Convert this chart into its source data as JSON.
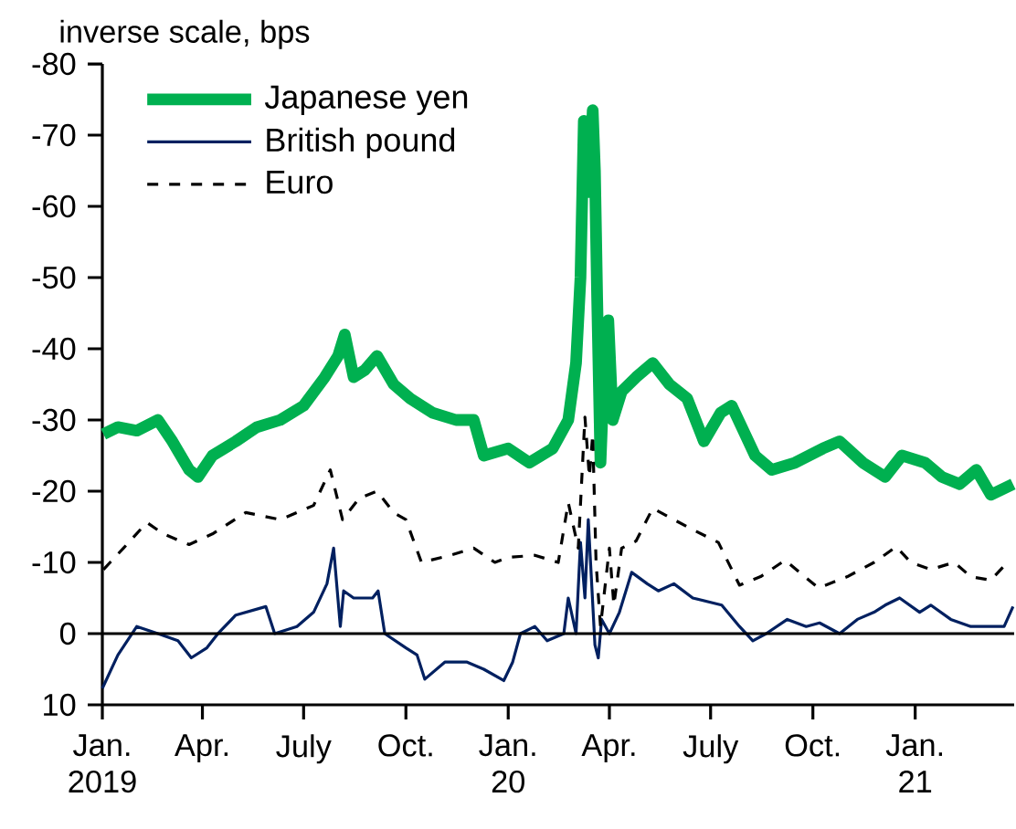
{
  "chart_data": {
    "type": "line",
    "ylabel": "inverse scale, bps",
    "xlim": [
      "2019-01-01",
      "2021-03-31"
    ],
    "ylim": [
      10,
      -80
    ],
    "yticks": [
      -80,
      -70,
      -60,
      -50,
      -40,
      -30,
      -20,
      -10,
      0,
      10
    ],
    "xticks": [
      {
        "value": "2019-01-01",
        "label": "Jan. 2019"
      },
      {
        "value": "2019-04-01",
        "label": "Apr."
      },
      {
        "value": "2019-07-01",
        "label": "July"
      },
      {
        "value": "2019-10-01",
        "label": "Oct."
      },
      {
        "value": "2020-01-01",
        "label": "Jan. 20"
      },
      {
        "value": "2020-04-01",
        "label": "Apr."
      },
      {
        "value": "2020-07-01",
        "label": "July"
      },
      {
        "value": "2020-10-01",
        "label": "Oct."
      },
      {
        "value": "2021-01-01",
        "label": "Jan. 21"
      }
    ],
    "legend": "top left",
    "grid": false,
    "marker": "none",
    "ref_lines": [
      {
        "axis": "y",
        "value": 0,
        "color": "#000000"
      }
    ],
    "series": [
      {
        "name": "Japanese yen",
        "color": "#00b050",
        "line_style": "solid",
        "x": [
          "2019-01-02",
          "2019-01-15",
          "2019-02-01",
          "2019-02-20",
          "2019-03-05",
          "2019-03-20",
          "2019-03-28",
          "2019-04-10",
          "2019-05-01",
          "2019-05-20",
          "2019-06-10",
          "2019-07-01",
          "2019-07-20",
          "2019-08-01",
          "2019-08-07",
          "2019-08-15",
          "2019-08-25",
          "2019-09-05",
          "2019-09-20",
          "2019-10-05",
          "2019-10-25",
          "2019-11-15",
          "2019-12-01",
          "2019-12-10",
          "2020-01-01",
          "2020-01-20",
          "2020-02-10",
          "2020-02-24",
          "2020-03-02",
          "2020-03-06",
          "2020-03-09",
          "2020-03-12",
          "2020-03-14",
          "2020-03-17",
          "2020-03-19",
          "2020-03-21",
          "2020-03-24",
          "2020-03-28",
          "2020-03-31",
          "2020-04-04",
          "2020-04-12",
          "2020-04-25",
          "2020-05-10",
          "2020-05-25",
          "2020-06-10",
          "2020-06-25",
          "2020-07-10",
          "2020-07-20",
          "2020-08-10",
          "2020-08-25",
          "2020-09-15",
          "2020-10-10",
          "2020-10-25",
          "2020-11-15",
          "2020-12-05",
          "2020-12-20",
          "2021-01-10",
          "2021-01-25",
          "2021-02-10",
          "2021-02-25",
          "2021-03-10",
          "2021-03-30"
        ],
        "values": [
          -28,
          -29,
          -28.5,
          -30,
          -27,
          -23,
          -22,
          -25,
          -27,
          -29,
          -30,
          -32,
          -36,
          -39,
          -42,
          -36,
          -37,
          -39,
          -35,
          -33,
          -31,
          -30,
          -30,
          -25,
          -26,
          -24,
          -26,
          -30,
          -38,
          -50,
          -72,
          -71,
          -62,
          -73.5,
          -65,
          -47,
          -24,
          -40,
          -44,
          -30,
          -34,
          -36,
          -38,
          -35,
          -33,
          -27,
          -31,
          -32,
          -25,
          -23,
          -24,
          -26,
          -27,
          -24,
          -22,
          -25,
          -24,
          -22,
          -21,
          -23,
          -19.5,
          -21
        ]
      },
      {
        "name": "British pound",
        "color": "#002060",
        "line_style": "solid",
        "x": [
          "2019-01-01",
          "2019-01-15",
          "2019-02-01",
          "2019-02-20",
          "2019-03-10",
          "2019-03-22",
          "2019-04-05",
          "2019-04-15",
          "2019-05-01",
          "2019-05-28",
          "2019-06-05",
          "2019-06-25",
          "2019-07-10",
          "2019-07-22",
          "2019-07-28",
          "2019-08-03",
          "2019-08-06",
          "2019-08-15",
          "2019-09-01",
          "2019-09-06",
          "2019-09-12",
          "2019-10-01",
          "2019-10-11",
          "2019-10-18",
          "2019-11-05",
          "2019-11-25",
          "2019-12-10",
          "2019-12-28",
          "2020-01-05",
          "2020-01-12",
          "2020-01-25",
          "2020-02-05",
          "2020-02-20",
          "2020-02-24",
          "2020-03-02",
          "2020-03-06",
          "2020-03-10",
          "2020-03-13",
          "2020-03-19",
          "2020-03-22",
          "2020-03-25",
          "2020-04-01",
          "2020-04-10",
          "2020-04-21",
          "2020-05-05",
          "2020-05-15",
          "2020-05-29",
          "2020-06-15",
          "2020-07-11",
          "2020-07-27",
          "2020-08-08",
          "2020-08-20",
          "2020-09-08",
          "2020-09-25",
          "2020-10-07",
          "2020-10-25",
          "2020-11-10",
          "2020-11-25",
          "2020-12-05",
          "2020-12-18",
          "2021-01-05",
          "2021-01-15",
          "2021-02-02",
          "2021-02-20",
          "2021-03-10",
          "2021-03-22",
          "2021-03-30"
        ],
        "values": [
          7.7,
          3,
          -1,
          0,
          1,
          3.4,
          2,
          0,
          -2.6,
          -3.8,
          0,
          -1,
          -3,
          -7,
          -12,
          -1,
          -6,
          -5,
          -5,
          -6,
          0,
          2,
          3,
          6.4,
          4,
          4,
          5,
          6.6,
          4,
          0,
          -1,
          1,
          0,
          -5,
          0,
          -12.8,
          -5,
          -16,
          1.6,
          3.4,
          -2,
          0,
          -3,
          -8.6,
          -7,
          -6,
          -7,
          -5,
          -4,
          -1,
          1,
          0,
          -2,
          -1,
          -1.5,
          0,
          -2,
          -3,
          -4,
          -5,
          -3,
          -4,
          -2,
          -1,
          -1,
          -1,
          -3.8
        ]
      },
      {
        "name": "Euro",
        "color": "#000000",
        "line_style": "dashed",
        "x": [
          "2019-01-02",
          "2019-01-20",
          "2019-02-10",
          "2019-02-25",
          "2019-03-20",
          "2019-04-10",
          "2019-05-10",
          "2019-06-10",
          "2019-07-10",
          "2019-07-25",
          "2019-08-05",
          "2019-08-20",
          "2019-09-05",
          "2019-09-20",
          "2019-10-01",
          "2019-10-15",
          "2019-11-10",
          "2019-12-01",
          "2019-12-20",
          "2020-01-01",
          "2020-01-25",
          "2020-02-15",
          "2020-02-24",
          "2020-03-04",
          "2020-03-10",
          "2020-03-14",
          "2020-03-17",
          "2020-03-20",
          "2020-03-24",
          "2020-04-01",
          "2020-04-05",
          "2020-04-12",
          "2020-04-25",
          "2020-05-10",
          "2020-06-10",
          "2020-07-08",
          "2020-07-27",
          "2020-08-15",
          "2020-09-06",
          "2020-10-06",
          "2020-11-01",
          "2020-11-25",
          "2020-12-15",
          "2020-12-28",
          "2021-01-15",
          "2021-02-05",
          "2021-02-20",
          "2021-03-10",
          "2021-03-25"
        ],
        "values": [
          -9,
          -12,
          -15.6,
          -14,
          -12.5,
          -14,
          -17,
          -16,
          -18,
          -23,
          -16,
          -19,
          -20,
          -17,
          -16,
          -10,
          -11,
          -12,
          -10,
          -10.7,
          -11,
          -10,
          -18.4,
          -12,
          -30.4,
          -22,
          -28,
          -10,
          -1,
          -12,
          -4,
          -12,
          -13,
          -17.6,
          -15,
          -12.8,
          -6.8,
          -8,
          -10.3,
          -6.4,
          -8,
          -10,
          -12.2,
          -10,
          -9,
          -10,
          -8,
          -7.5,
          -10
        ]
      }
    ]
  }
}
